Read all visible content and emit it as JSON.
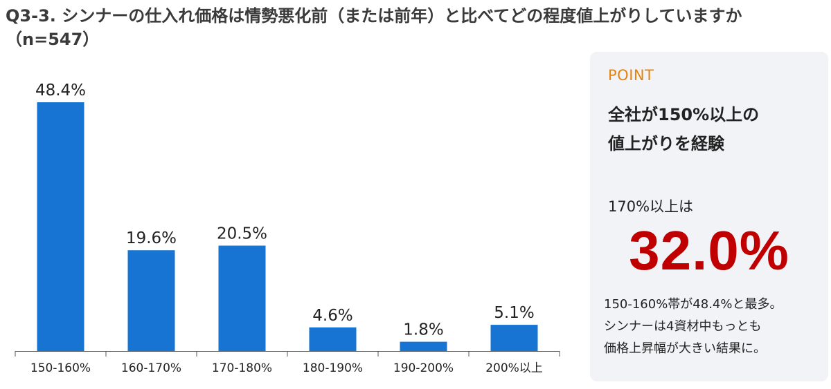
{
  "title": {
    "line1": "Q3-3. シンナーの仕入れ価格は情勢悪化前（または前年）と比べてどの程度値上がりしていますか",
    "line2": "（n=547）"
  },
  "chart_data": {
    "type": "bar",
    "categories": [
      "150-160%",
      "160-170%",
      "170-180%",
      "180-190%",
      "190-200%",
      "200%以上"
    ],
    "values": [
      48.4,
      19.6,
      20.5,
      4.6,
      1.8,
      5.1
    ],
    "value_labels": [
      "48.4%",
      "19.6%",
      "20.5%",
      "4.6%",
      "1.8%",
      "5.1%"
    ],
    "ylim": [
      0,
      50
    ],
    "bar_color": "#1874d2",
    "grid": false
  },
  "point": {
    "heading": "POINT",
    "headline_line1": "全社が150%以上の",
    "headline_line2": "値上がりを経験",
    "sub": "170%以上は",
    "big_value": "32.0%",
    "note_line1": "150-160%帯が48.4%と最多。",
    "note_line2": "シンナーは4資材中もっとも",
    "note_line3": "価格上昇幅が大きい結果に。",
    "heading_color": "#e3830f",
    "big_color": "#c00000"
  }
}
